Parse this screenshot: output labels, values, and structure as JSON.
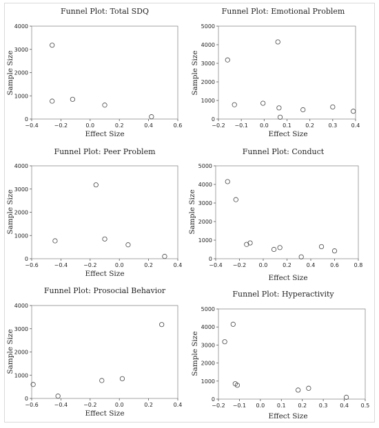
{
  "chart_data": [
    {
      "type": "scatter",
      "title": "Funnel Plot: Total SDQ",
      "xlabel": "Effect Size",
      "ylabel": "Sample Size",
      "xlim": [
        -0.4,
        0.6
      ],
      "ylim": [
        0,
        4000
      ],
      "xticks": [
        -0.4,
        -0.2,
        0.0,
        0.2,
        0.4,
        0.6
      ],
      "yticks": [
        0,
        1000,
        2000,
        3000,
        4000
      ],
      "xtick_labels": [
        "−0.4",
        "−0.2",
        "0.0",
        "0.2",
        "0.4",
        "0.6"
      ],
      "ytick_labels": [
        "0",
        "1000",
        "2000",
        "3000",
        "4000"
      ],
      "points": [
        {
          "x": -0.26,
          "y": 3180
        },
        {
          "x": -0.26,
          "y": 770
        },
        {
          "x": -0.12,
          "y": 850
        },
        {
          "x": 0.1,
          "y": 600
        },
        {
          "x": 0.42,
          "y": 100
        }
      ]
    },
    {
      "type": "scatter",
      "title": "Funnel Plot: Emotional Problem",
      "xlabel": "Effect Size",
      "ylabel": "Sample Size",
      "xlim": [
        -0.2,
        0.4
      ],
      "ylim": [
        0,
        5000
      ],
      "xticks": [
        -0.2,
        -0.1,
        0.0,
        0.1,
        0.2,
        0.3,
        0.4
      ],
      "yticks": [
        0,
        1000,
        2000,
        3000,
        4000,
        5000
      ],
      "xtick_labels": [
        "−0.2",
        "−0.1",
        "0.0",
        "0.1",
        "0.2",
        "0.3",
        "0.4"
      ],
      "ytick_labels": [
        "0",
        "1000",
        "2000",
        "3000",
        "4000",
        "5000"
      ],
      "points": [
        {
          "x": -0.16,
          "y": 3180
        },
        {
          "x": -0.13,
          "y": 770
        },
        {
          "x": -0.005,
          "y": 850
        },
        {
          "x": 0.06,
          "y": 4150
        },
        {
          "x": 0.065,
          "y": 600
        },
        {
          "x": 0.07,
          "y": 100
        },
        {
          "x": 0.17,
          "y": 500
        },
        {
          "x": 0.3,
          "y": 650
        },
        {
          "x": 0.39,
          "y": 420
        }
      ]
    },
    {
      "type": "scatter",
      "title": "Funnel Plot: Peer Problem",
      "xlabel": "Effect Size",
      "ylabel": "Sample Size",
      "xlim": [
        -0.6,
        0.4
      ],
      "ylim": [
        0,
        4000
      ],
      "xticks": [
        -0.6,
        -0.4,
        -0.2,
        0.0,
        0.2,
        0.4
      ],
      "yticks": [
        0,
        1000,
        2000,
        3000,
        4000
      ],
      "xtick_labels": [
        "−0.6",
        "−0.4",
        "−0.2",
        "0.0",
        "0.2",
        "0.4"
      ],
      "ytick_labels": [
        "0",
        "1000",
        "2000",
        "3000",
        "4000"
      ],
      "points": [
        {
          "x": -0.44,
          "y": 770
        },
        {
          "x": -0.16,
          "y": 3180
        },
        {
          "x": -0.1,
          "y": 850
        },
        {
          "x": 0.06,
          "y": 600
        },
        {
          "x": 0.31,
          "y": 100
        }
      ]
    },
    {
      "type": "scatter",
      "title": "Funnel Plot: Conduct",
      "xlabel": "Effect Size",
      "ylabel": "Sample Size",
      "xlim": [
        -0.4,
        0.8
      ],
      "ylim": [
        0,
        5000
      ],
      "xticks": [
        -0.4,
        -0.2,
        0.0,
        0.2,
        0.4,
        0.6,
        0.8
      ],
      "yticks": [
        0,
        1000,
        2000,
        3000,
        4000,
        5000
      ],
      "xtick_labels": [
        "−0.4",
        "−0.2",
        "0.0",
        "0.2",
        "0.4",
        "0.6",
        "0.8"
      ],
      "ytick_labels": [
        "0",
        "1000",
        "2000",
        "3000",
        "4000",
        "5000"
      ],
      "points": [
        {
          "x": -0.3,
          "y": 4150
        },
        {
          "x": -0.23,
          "y": 3180
        },
        {
          "x": -0.14,
          "y": 770
        },
        {
          "x": -0.11,
          "y": 850
        },
        {
          "x": 0.09,
          "y": 500
        },
        {
          "x": 0.14,
          "y": 600
        },
        {
          "x": 0.32,
          "y": 100
        },
        {
          "x": 0.49,
          "y": 650
        },
        {
          "x": 0.6,
          "y": 420
        }
      ]
    },
    {
      "type": "scatter",
      "title": "Funnel Plot: Prosocial Behavior",
      "xlabel": "Effect Size",
      "ylabel": "Sample Size",
      "xlim": [
        -0.6,
        0.4
      ],
      "ylim": [
        0,
        4000
      ],
      "xticks": [
        -0.6,
        -0.4,
        -0.2,
        0.0,
        0.2,
        0.4
      ],
      "yticks": [
        0,
        1000,
        2000,
        3000,
        4000
      ],
      "xtick_labels": [
        "−0.6",
        "−0.4",
        "−0.2",
        "0.0",
        "0.2",
        "0.4"
      ],
      "ytick_labels": [
        "0",
        "1000",
        "2000",
        "3000",
        "4000"
      ],
      "points": [
        {
          "x": -0.59,
          "y": 600
        },
        {
          "x": -0.42,
          "y": 100
        },
        {
          "x": -0.12,
          "y": 770
        },
        {
          "x": 0.02,
          "y": 850
        },
        {
          "x": 0.29,
          "y": 3180
        }
      ]
    },
    {
      "type": "scatter",
      "title": "Funnel Plot: Hyperactivity",
      "xlabel": "Effect Size",
      "ylabel": "Sample Size",
      "xlim": [
        -0.2,
        0.5
      ],
      "ylim": [
        0,
        5000
      ],
      "xticks": [
        -0.2,
        -0.1,
        0.0,
        0.1,
        0.2,
        0.3,
        0.4,
        0.5
      ],
      "yticks": [
        0,
        1000,
        2000,
        3000,
        4000,
        5000
      ],
      "xtick_labels": [
        "−0.2",
        "−0.1",
        "0.0",
        "0.1",
        "0.2",
        "0.3",
        "0.4",
        "0.5"
      ],
      "ytick_labels": [
        "0",
        "1000",
        "2000",
        "3000",
        "4000",
        "5000"
      ],
      "points": [
        {
          "x": -0.17,
          "y": 3180
        },
        {
          "x": -0.13,
          "y": 4150
        },
        {
          "x": -0.12,
          "y": 850
        },
        {
          "x": -0.11,
          "y": 770
        },
        {
          "x": 0.18,
          "y": 500
        },
        {
          "x": 0.23,
          "y": 600
        },
        {
          "x": 0.41,
          "y": 100
        }
      ]
    }
  ]
}
